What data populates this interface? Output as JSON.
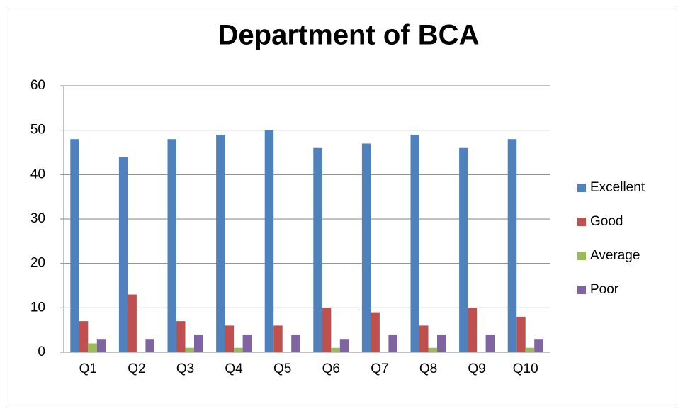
{
  "chart_data": {
    "type": "bar",
    "title": "Department of BCA",
    "categories": [
      "Q1",
      "Q2",
      "Q3",
      "Q4",
      "Q5",
      "Q6",
      "Q7",
      "Q8",
      "Q9",
      "Q10"
    ],
    "series": [
      {
        "name": "Excellent",
        "color": "#4f81bd",
        "values": [
          48,
          44,
          48,
          49,
          50,
          46,
          47,
          49,
          46,
          48
        ]
      },
      {
        "name": "Good",
        "color": "#c0504d",
        "values": [
          7,
          13,
          7,
          6,
          6,
          10,
          9,
          6,
          10,
          8
        ]
      },
      {
        "name": "Average",
        "color": "#9bbb59",
        "values": [
          2,
          0,
          1,
          1,
          0,
          1,
          0,
          1,
          0,
          1
        ]
      },
      {
        "name": "Poor",
        "color": "#8064a2",
        "values": [
          3,
          3,
          4,
          4,
          4,
          3,
          4,
          4,
          4,
          3
        ]
      }
    ],
    "ylim": [
      0,
      60
    ],
    "yticks": [
      0,
      10,
      20,
      30,
      40,
      50,
      60
    ],
    "grid": true,
    "legend": "right"
  }
}
